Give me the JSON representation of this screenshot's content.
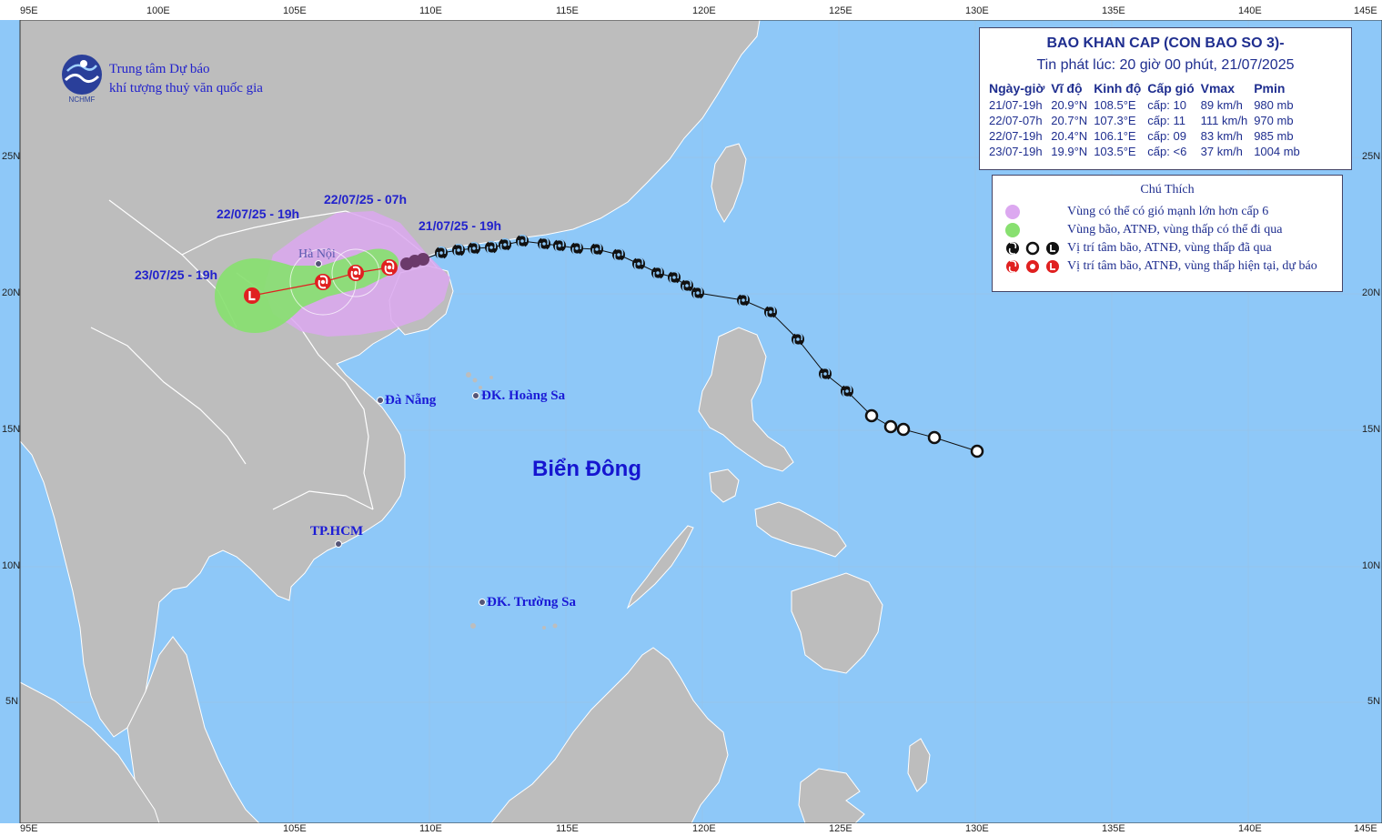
{
  "organization": {
    "line1": "Trung tâm Dự báo",
    "line2": "khí tượng thuỷ văn quốc gia",
    "logo_text": "NCHMF"
  },
  "bulletin": {
    "title": "BAO KHAN CAP (CON BAO SO 3)-",
    "issued": "Tin phát lúc: 20 giờ 00 phút, 21/07/2025",
    "columns": [
      "Ngày-giờ",
      "Vĩ độ",
      "Kinh độ",
      "Cấp gió",
      "Vmax",
      "Pmin"
    ],
    "rows": [
      [
        "21/07-19h",
        "20.9°N",
        "108.5°E",
        "cấp: 10",
        "89 km/h",
        "980 mb"
      ],
      [
        "22/07-07h",
        "20.7°N",
        "107.3°E",
        "cấp: 11",
        "111 km/h",
        "970 mb"
      ],
      [
        "22/07-19h",
        "20.4°N",
        "106.1°E",
        "cấp: 09",
        "83 km/h",
        "985 mb"
      ],
      [
        "23/07-19h",
        "19.9°N",
        "103.5°E",
        "cấp: <6",
        "37 km/h",
        "1004 mb"
      ]
    ]
  },
  "legend": {
    "title": "Chú Thích",
    "items": [
      {
        "text": "Vùng có thể có gió mạnh lớn hơn cấp 6",
        "color": "#dca8f0"
      },
      {
        "text": "Vùng bão, ATNĐ, vùng thấp có thể đi qua",
        "color": "#88e070"
      },
      {
        "text": "Vị trí tâm bão, ATNĐ, vùng thấp đã qua",
        "color": "#111111"
      },
      {
        "text": "Vị trí tâm bão, ATNĐ, vùng thấp hiện tại, dự báo",
        "color": "#e02020"
      }
    ]
  },
  "axes": {
    "lon_ticks": [
      "100E",
      "105E",
      "110E",
      "115E",
      "120E",
      "125E",
      "130E",
      "135E",
      "140E"
    ],
    "lat_ticks": [
      "25N",
      "20N",
      "15N",
      "10N",
      "5N"
    ],
    "corner_left": "95E",
    "corner_right": "145E"
  },
  "places": {
    "hanoi": "Hà Nội",
    "danang": "Đà Nẵng",
    "hoangsa": "ĐK. Hoàng Sa",
    "hcm": "TP.HCM",
    "truongsa": "ĐK. Trường Sa",
    "sea": "Biển Đông"
  },
  "forecast_labels": {
    "t0": "21/07/25 - 19h",
    "t1": "22/07/25 - 07h",
    "t2": "22/07/25 - 19h",
    "t3": "23/07/25 - 19h"
  },
  "colors": {
    "sea": "#8ec8f8",
    "land": "#bdbdbd",
    "wind_zone": "#dca8f0",
    "storm_zone": "#88e070",
    "text_blue": "#1f2e8f",
    "forecast_red": "#e02020"
  }
}
